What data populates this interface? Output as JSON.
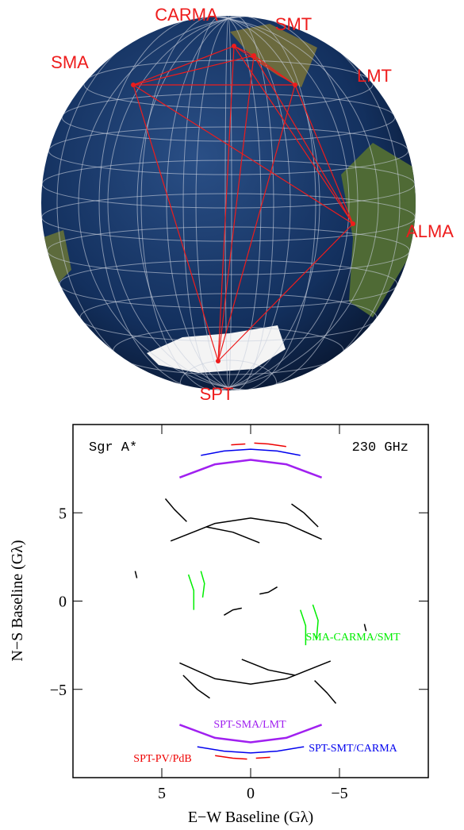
{
  "globe": {
    "stations": [
      "SMA",
      "CARMA",
      "SMT",
      "LMT",
      "ALMA",
      "SPT"
    ]
  },
  "chart_data": {
    "type": "line",
    "annotations": [
      "Sgr A*",
      "230 GHz"
    ],
    "x_label": "E−W Baseline (Gλ)",
    "y_label": "N−S Baseline (Gλ)",
    "xlim": [
      10,
      -10
    ],
    "ylim": [
      -10,
      10
    ],
    "xticks": [
      5,
      0,
      {
        "value": -5,
        "label": "−5"
      }
    ],
    "yticks": [
      5,
      0,
      {
        "value": -5,
        "label": "−5"
      }
    ],
    "series": [
      {
        "color": "#000000",
        "x": [
          4.5,
          2,
          0,
          -2,
          -4,
          null,
          4,
          2,
          0,
          -2,
          -4.5,
          null,
          4.8,
          4.3,
          3.6,
          null,
          -4.8,
          -4.3,
          -3.6,
          null,
          1.5,
          1,
          0.5,
          null,
          -0.5,
          -1,
          -1.5,
          null,
          2.5,
          1,
          -0.5,
          null,
          -2.5,
          -1,
          0.5,
          null,
          -2.3,
          -3,
          -3.8,
          null,
          2.3,
          3,
          3.8,
          null,
          6.5,
          6.4,
          null,
          -6.5,
          -6.4
        ],
        "y": [
          3.4,
          4.4,
          4.7,
          4.4,
          3.5,
          null,
          -3.5,
          -4.4,
          -4.7,
          -4.4,
          -3.4,
          null,
          5.8,
          5.2,
          4.5,
          null,
          -5.8,
          -5.2,
          -4.5,
          null,
          -0.8,
          -0.5,
          -0.4,
          null,
          0.4,
          0.5,
          0.8,
          null,
          4.2,
          3.9,
          3.3,
          null,
          -4.2,
          -3.9,
          -3.3,
          null,
          5.5,
          5,
          4.2,
          null,
          -5.5,
          -5,
          -4.2,
          null,
          1.7,
          1.3,
          null,
          -1.7,
          -1.3
        ]
      },
      {
        "name": "SMA-CARMA/SMT",
        "color": "#00ee00",
        "x": [
          3.5,
          3.2,
          3.2,
          null,
          2.8,
          2.6,
          2.7,
          null,
          -2.8,
          -3.1,
          -3.1,
          null,
          -3.5,
          -3.8,
          -3.7
        ],
        "y": [
          1.5,
          0.6,
          -0.5,
          null,
          1.7,
          1.0,
          0.2,
          null,
          -0.5,
          -1.4,
          -2.5,
          null,
          -0.2,
          -1.1,
          -2.2
        ]
      },
      {
        "name": "SPT-SMA/LMT",
        "color": "#a020f0",
        "x": [
          4,
          2,
          0,
          -2,
          -4,
          null,
          4,
          2,
          0,
          -2,
          -4
        ],
        "y": [
          -7.0,
          -7.75,
          -8.0,
          -7.75,
          -7.0,
          null,
          7.0,
          7.75,
          8.0,
          7.75,
          7.0
        ]
      },
      {
        "name": "SPT-SMT/CARMA",
        "color": "#0000ee",
        "x": [
          3,
          1.5,
          0,
          -1.5,
          -3,
          null,
          2.8,
          1.5,
          0,
          -1.5,
          -2.8
        ],
        "y": [
          -8.25,
          -8.5,
          -8.6,
          -8.5,
          -8.25,
          null,
          8.25,
          8.5,
          8.6,
          8.5,
          8.25
        ]
      },
      {
        "name": "SPT-PV/PdB",
        "color": "#ee0000",
        "x": [
          2,
          1,
          0.2,
          null,
          -0.3,
          -1.1,
          null,
          -2,
          -1,
          -0.2,
          null,
          0.3,
          1.1
        ],
        "y": [
          -8.75,
          -8.9,
          -8.95,
          null,
          -8.9,
          -8.85,
          null,
          8.75,
          8.9,
          8.95,
          null,
          8.9,
          8.85
        ]
      }
    ]
  }
}
